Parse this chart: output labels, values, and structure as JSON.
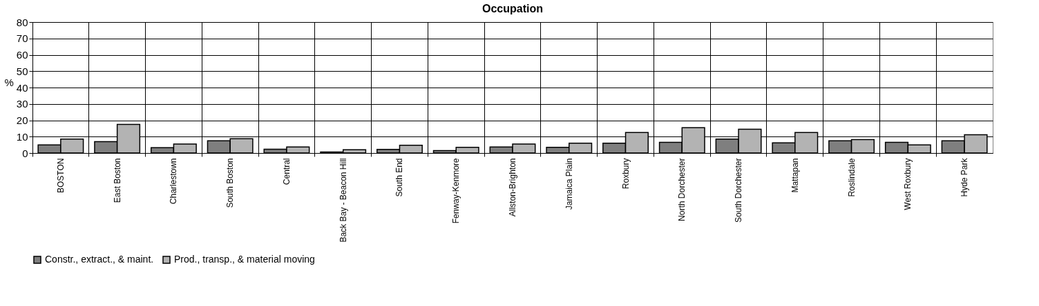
{
  "chart_data": {
    "type": "bar",
    "title": "Occupation",
    "ylabel": "%",
    "categories": [
      "BOSTON",
      "East Boston",
      "Charlestown",
      "South Boston",
      "Central",
      "Back Bay - Beacon Hill",
      "South End",
      "Fenway-Kenmore",
      "Allston-Brighton",
      "Jamaica Plain",
      "Roxbury",
      "North Dorchester",
      "South Dorchester",
      "Mattapan",
      "Roslindale",
      "West Roxbury",
      "Hyde Park"
    ],
    "series": [
      {
        "name": "Constr., extract., & maint.",
        "color": "#7f7f7f",
        "values": [
          5.0,
          7.0,
          3.3,
          7.5,
          2.3,
          0.6,
          2.2,
          1.5,
          3.7,
          3.5,
          6.0,
          6.5,
          8.5,
          6.2,
          7.5,
          6.5,
          7.5
        ]
      },
      {
        "name": "Prod., transp., & material moving",
        "color": "#b3b3b3",
        "values": [
          8.5,
          17.5,
          5.5,
          8.7,
          3.7,
          2.0,
          4.7,
          3.5,
          5.5,
          6.0,
          12.5,
          15.5,
          14.5,
          12.5,
          8.2,
          5.0,
          11.2
        ]
      }
    ],
    "ylim": [
      0,
      80
    ],
    "yticks": [
      0,
      10,
      20,
      30,
      40,
      50,
      60,
      70,
      80
    ],
    "grid": true,
    "legend": "bottom"
  }
}
